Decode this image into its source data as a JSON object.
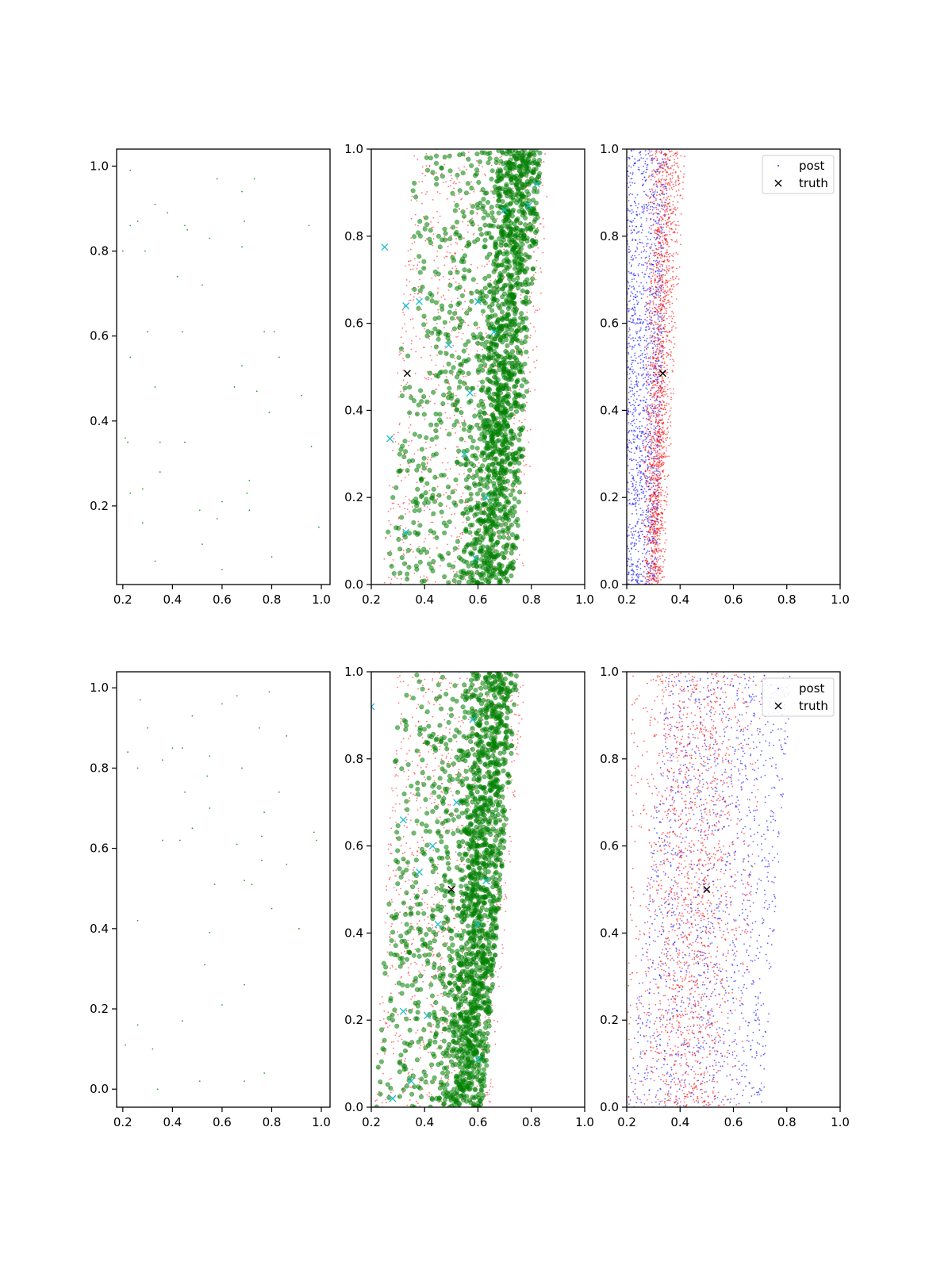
{
  "colors": {
    "sample_point": "#2ca02c",
    "prior_point": "#ff0000",
    "post_point": "#0000ff",
    "green_marker": "#008000",
    "cyan_cross": "#17becf",
    "truth": "#000000"
  },
  "legend": {
    "post_label": "post",
    "truth_label": "truth"
  },
  "chart_data": [
    {
      "type": "scatter",
      "panel": "row1-col1",
      "xlim": [
        0.175,
        1.035
      ],
      "ylim": [
        0.015,
        1.04
      ],
      "xticks": [
        0.2,
        0.4,
        0.6,
        0.8,
        1.0
      ],
      "xtick_labels": [
        "0.2",
        "0.4",
        "0.6",
        "0.8",
        "1.0"
      ],
      "yticks": [
        0.2,
        0.4,
        0.6,
        0.8,
        1.0
      ],
      "ytick_labels": [
        "0.2",
        "0.4",
        "0.6",
        "0.8",
        "1.0"
      ],
      "grid": false,
      "points": [
        [
          0.23,
          0.99
        ],
        [
          0.23,
          0.86
        ],
        [
          0.26,
          0.87
        ],
        [
          0.2,
          0.8
        ],
        [
          0.29,
          0.8
        ],
        [
          0.33,
          0.91
        ],
        [
          0.38,
          0.89
        ],
        [
          0.45,
          0.86
        ],
        [
          0.46,
          0.85
        ],
        [
          0.58,
          0.97
        ],
        [
          0.55,
          0.83
        ],
        [
          0.68,
          0.94
        ],
        [
          0.73,
          0.97
        ],
        [
          0.69,
          0.87
        ],
        [
          0.68,
          0.81
        ],
        [
          0.95,
          0.86
        ],
        [
          0.42,
          0.74
        ],
        [
          0.52,
          0.72
        ],
        [
          0.3,
          0.61
        ],
        [
          0.44,
          0.61
        ],
        [
          0.77,
          0.61
        ],
        [
          0.81,
          0.61
        ],
        [
          0.23,
          0.55
        ],
        [
          0.83,
          0.55
        ],
        [
          0.68,
          0.53
        ],
        [
          0.33,
          0.48
        ],
        [
          0.65,
          0.48
        ],
        [
          0.74,
          0.47
        ],
        [
          0.92,
          0.46
        ],
        [
          0.79,
          0.42
        ],
        [
          0.21,
          0.36
        ],
        [
          0.22,
          0.35
        ],
        [
          0.35,
          0.35
        ],
        [
          0.45,
          0.35
        ],
        [
          0.96,
          0.34
        ],
        [
          0.35,
          0.28
        ],
        [
          0.71,
          0.26
        ],
        [
          0.28,
          0.24
        ],
        [
          0.23,
          0.23
        ],
        [
          0.7,
          0.23
        ],
        [
          0.51,
          0.19
        ],
        [
          0.71,
          0.19
        ],
        [
          0.6,
          0.21
        ],
        [
          0.58,
          0.17
        ],
        [
          0.28,
          0.16
        ],
        [
          0.99,
          0.15
        ],
        [
          0.52,
          0.11
        ],
        [
          0.8,
          0.08
        ],
        [
          0.33,
          0.07
        ],
        [
          0.6,
          0.05
        ]
      ]
    },
    {
      "type": "scatter",
      "panel": "row1-col2",
      "xlim": [
        0.2,
        1.0
      ],
      "ylim": [
        0.0,
        1.0
      ],
      "xticks": [
        0.2,
        0.4,
        0.6,
        0.8,
        1.0
      ],
      "xtick_labels": [
        "0.2",
        "0.4",
        "0.6",
        "0.8",
        "1.0"
      ],
      "yticks": [
        0.0,
        0.2,
        0.4,
        0.6,
        0.8,
        1.0
      ],
      "ytick_labels": [
        "0.0",
        "0.2",
        "0.4",
        "0.6",
        "0.8",
        "1.0"
      ],
      "grid": false,
      "cloud": {
        "x_min_bottom": 0.24,
        "x_max_bottom": 0.74,
        "x_min_top": 0.36,
        "x_max_top": 0.84,
        "dense_x_bottom": 0.63,
        "dense_x_top": 0.75,
        "count": 1900
      },
      "cyan_crosses": [
        [
          0.25,
          0.775
        ],
        [
          0.33,
          0.64
        ],
        [
          0.38,
          0.65
        ],
        [
          0.27,
          0.335
        ],
        [
          0.33,
          0.12
        ],
        [
          0.49,
          0.55
        ],
        [
          0.57,
          0.44
        ],
        [
          0.6,
          0.65
        ],
        [
          0.66,
          0.58
        ],
        [
          0.7,
          0.86
        ],
        [
          0.79,
          0.87
        ],
        [
          0.82,
          0.92
        ],
        [
          0.55,
          0.3
        ],
        [
          0.63,
          0.2
        ],
        [
          0.59,
          0.06
        ]
      ],
      "truth": [
        0.335,
        0.485
      ]
    },
    {
      "type": "scatter",
      "panel": "row1-col3",
      "xlim": [
        0.2,
        1.0
      ],
      "ylim": [
        0.0,
        1.0
      ],
      "xticks": [
        0.2,
        0.4,
        0.6,
        0.8,
        1.0
      ],
      "xtick_labels": [
        "0.2",
        "0.4",
        "0.6",
        "0.8",
        "1.0"
      ],
      "yticks": [
        0.0,
        0.2,
        0.4,
        0.6,
        0.8,
        1.0
      ],
      "ytick_labels": [
        "0.0",
        "0.2",
        "0.4",
        "0.6",
        "0.8",
        "1.0"
      ],
      "grid": false,
      "legend_position": "top-right",
      "series": [
        {
          "name": "post",
          "x_min_bottom": 0.2,
          "x_max_bottom": 0.31,
          "x_min_top": 0.2,
          "x_max_top": 0.36,
          "count": 1500
        },
        {
          "x_min_bottom": 0.26,
          "x_max_bottom": 0.34,
          "x_min_top": 0.28,
          "x_max_top": 0.42,
          "count": 1700
        }
      ],
      "truth": [
        0.335,
        0.485
      ]
    },
    {
      "type": "scatter",
      "panel": "row2-col1",
      "xlim": [
        0.175,
        1.035
      ],
      "ylim": [
        -0.045,
        1.04
      ],
      "xticks": [
        0.2,
        0.4,
        0.6,
        0.8,
        1.0
      ],
      "xtick_labels": [
        "0.2",
        "0.4",
        "0.6",
        "0.8",
        "1.0"
      ],
      "yticks": [
        0.0,
        0.2,
        0.4,
        0.6,
        0.8,
        1.0
      ],
      "ytick_labels": [
        "0.0",
        "0.2",
        "0.4",
        "0.6",
        "0.8",
        "1.0"
      ],
      "grid": false,
      "points": [
        [
          0.27,
          0.97
        ],
        [
          0.48,
          0.93
        ],
        [
          0.66,
          0.98
        ],
        [
          0.79,
          0.99
        ],
        [
          0.3,
          0.9
        ],
        [
          0.6,
          0.96
        ],
        [
          0.75,
          0.9
        ],
        [
          0.86,
          0.88
        ],
        [
          0.22,
          0.84
        ],
        [
          0.26,
          0.8
        ],
        [
          0.36,
          0.82
        ],
        [
          0.4,
          0.85
        ],
        [
          0.44,
          0.85
        ],
        [
          0.55,
          0.83
        ],
        [
          0.68,
          0.8
        ],
        [
          0.54,
          0.78
        ],
        [
          0.45,
          0.74
        ],
        [
          0.55,
          0.7
        ],
        [
          0.77,
          0.69
        ],
        [
          0.83,
          0.74
        ],
        [
          0.48,
          0.65
        ],
        [
          0.36,
          0.62
        ],
        [
          0.43,
          0.62
        ],
        [
          0.66,
          0.61
        ],
        [
          0.76,
          0.63
        ],
        [
          0.97,
          0.64
        ],
        [
          0.98,
          0.62
        ],
        [
          0.76,
          0.57
        ],
        [
          0.86,
          0.56
        ],
        [
          0.57,
          0.51
        ],
        [
          0.69,
          0.52
        ],
        [
          0.72,
          0.51
        ],
        [
          0.26,
          0.42
        ],
        [
          0.8,
          0.45
        ],
        [
          0.55,
          0.39
        ],
        [
          0.91,
          0.4
        ],
        [
          0.53,
          0.31
        ],
        [
          0.69,
          0.26
        ],
        [
          0.6,
          0.21
        ],
        [
          0.26,
          0.16
        ],
        [
          0.44,
          0.17
        ],
        [
          0.21,
          0.11
        ],
        [
          0.32,
          0.1
        ],
        [
          0.51,
          0.02
        ],
        [
          0.69,
          0.02
        ],
        [
          0.77,
          0.04
        ],
        [
          0.34,
          0.0
        ]
      ]
    },
    {
      "type": "scatter",
      "panel": "row2-col2",
      "xlim": [
        0.2,
        1.0
      ],
      "ylim": [
        0.0,
        1.0
      ],
      "xticks": [
        0.2,
        0.4,
        0.6,
        0.8,
        1.0
      ],
      "xtick_labels": [
        "0.2",
        "0.4",
        "0.6",
        "0.8",
        "1.0"
      ],
      "yticks": [
        0.0,
        0.2,
        0.4,
        0.6,
        0.8,
        1.0
      ],
      "ytick_labels": [
        "0.0",
        "0.2",
        "0.4",
        "0.6",
        "0.8",
        "1.0"
      ],
      "grid": false,
      "cloud": {
        "x_min_bottom": 0.21,
        "x_max_bottom": 0.62,
        "x_min_top": 0.3,
        "x_max_top": 0.75,
        "dense_x_bottom": 0.55,
        "dense_x_top": 0.66,
        "count": 1900
      },
      "cyan_crosses": [
        [
          0.2,
          0.92
        ],
        [
          0.32,
          0.66
        ],
        [
          0.38,
          0.54
        ],
        [
          0.43,
          0.6
        ],
        [
          0.45,
          0.42
        ],
        [
          0.52,
          0.7
        ],
        [
          0.58,
          0.89
        ],
        [
          0.6,
          0.42
        ],
        [
          0.63,
          0.52
        ],
        [
          0.32,
          0.22
        ],
        [
          0.35,
          0.06
        ],
        [
          0.28,
          0.02
        ],
        [
          0.41,
          0.21
        ],
        [
          0.6,
          0.11
        ]
      ],
      "truth": [
        0.5,
        0.5
      ]
    },
    {
      "type": "scatter",
      "panel": "row2-col3",
      "xlim": [
        0.2,
        1.0
      ],
      "ylim": [
        0.0,
        1.0
      ],
      "xticks": [
        0.2,
        0.4,
        0.6,
        0.8,
        1.0
      ],
      "xtick_labels": [
        "0.2",
        "0.4",
        "0.6",
        "0.8",
        "1.0"
      ],
      "yticks": [
        0.0,
        0.2,
        0.4,
        0.6,
        0.8,
        1.0
      ],
      "ytick_labels": [
        "0.0",
        "0.2",
        "0.4",
        "0.6",
        "0.8",
        "1.0"
      ],
      "grid": false,
      "legend_position": "top-right",
      "series": [
        {
          "name": "post",
          "x_min_bottom": 0.2,
          "x_max_bottom": 0.71,
          "x_min_top": 0.35,
          "x_max_top": 0.82,
          "count": 1500
        },
        {
          "x_min_bottom": 0.2,
          "x_max_bottom": 0.62,
          "x_min_top": 0.22,
          "x_max_top": 0.72,
          "count": 1700
        }
      ],
      "truth": [
        0.5,
        0.5
      ]
    }
  ]
}
